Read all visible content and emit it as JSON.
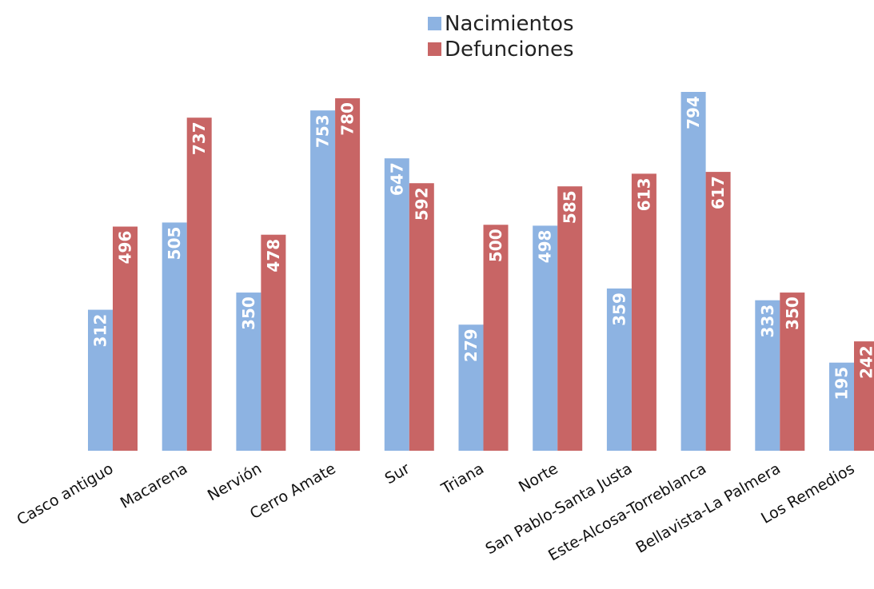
{
  "chart_data": {
    "type": "bar",
    "categories": [
      "Casco antiguo",
      "Macarena",
      "Nervión",
      "Cerro Amate",
      "Sur",
      "Triana",
      "Norte",
      "San Pablo-Santa Justa",
      "Este-Alcosa-Torreblanca",
      "Bellavista-La Palmera",
      "Los Remedios"
    ],
    "series": [
      {
        "name": "Nacimientos",
        "color": "#8db3e2",
        "values": [
          312,
          505,
          350,
          753,
          647,
          279,
          498,
          359,
          794,
          333,
          195
        ]
      },
      {
        "name": "Defunciones",
        "color": "#c86565",
        "values": [
          496,
          737,
          478,
          780,
          592,
          500,
          585,
          613,
          617,
          350,
          242
        ]
      }
    ],
    "ylim": [
      0,
      794
    ],
    "grid": false,
    "legend": "top-center",
    "data_labels": true
  }
}
